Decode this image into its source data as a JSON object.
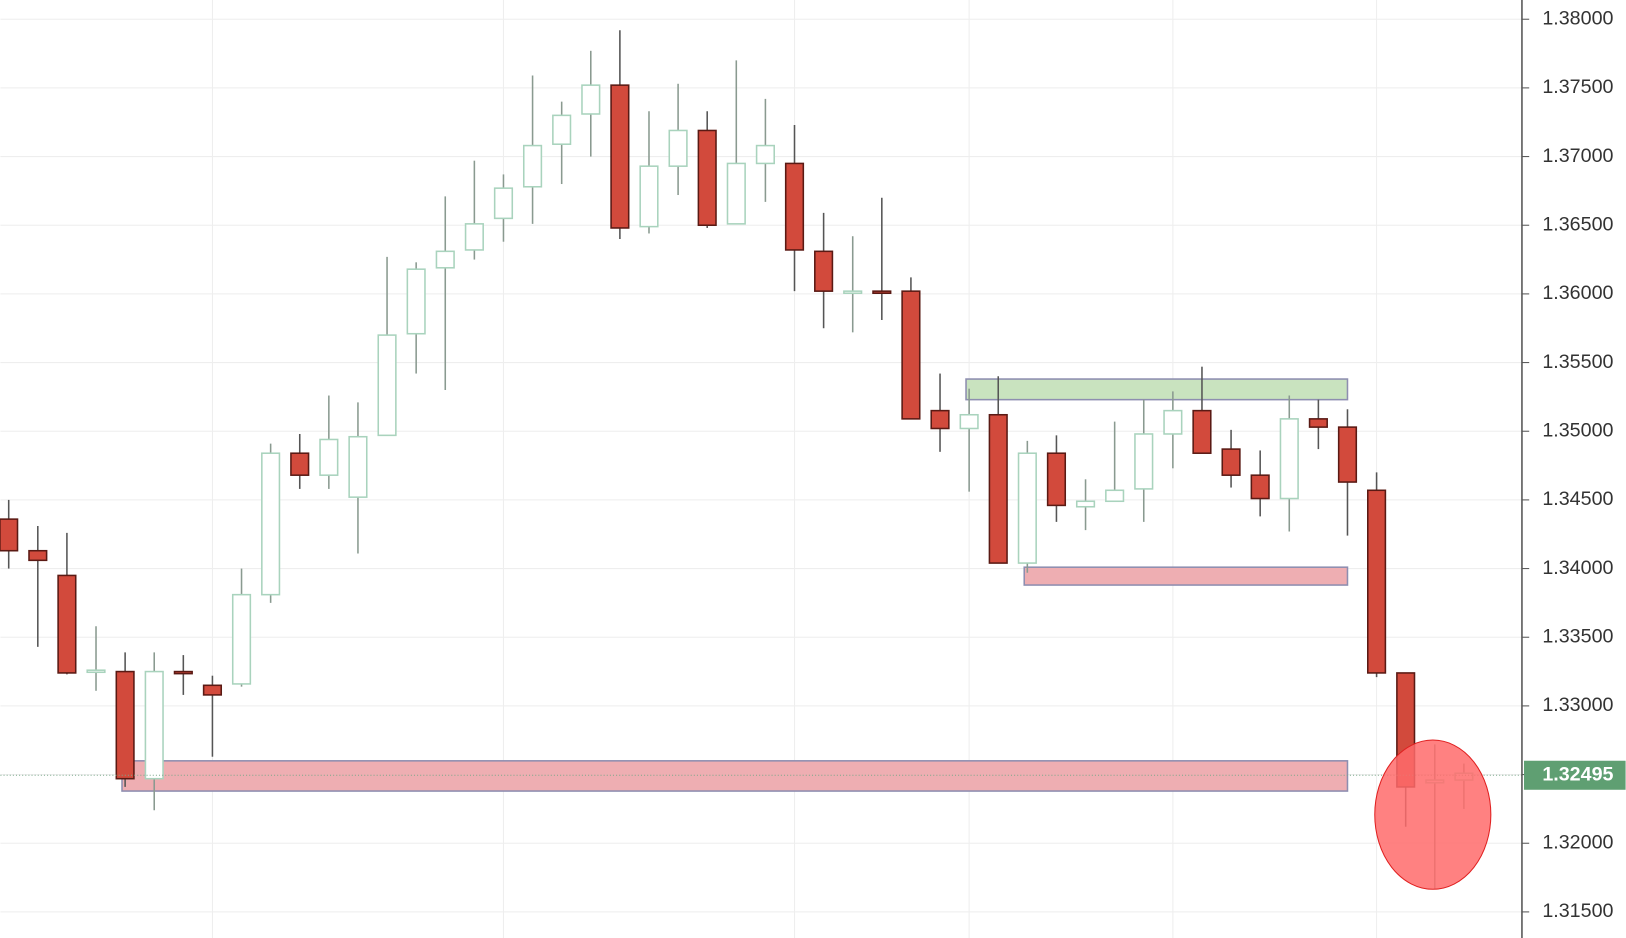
{
  "chart_data": {
    "type": "candlestick",
    "open": [
      1.3436,
      1.3413,
      1.3395,
      1.3325,
      1.3325,
      1.3247,
      1.3325,
      1.3315,
      1.3316,
      1.3381,
      1.3484,
      1.3468,
      1.3452,
      1.3497,
      1.3571,
      1.3619,
      1.3632,
      1.3655,
      1.3678,
      1.3709,
      1.3731,
      1.3752,
      1.3649,
      1.3693,
      1.3719,
      1.3651,
      1.3695,
      1.3695,
      1.3631,
      1.3601,
      1.3602,
      1.3602,
      1.3515,
      1.3502,
      1.3512,
      1.3404,
      1.3484,
      1.3445,
      1.3449,
      1.3458,
      1.3498,
      1.3515,
      1.3487,
      1.3468,
      1.3451,
      1.3509,
      1.3503,
      1.3457,
      1.3324,
      1.3244,
      1.3246
    ],
    "high": [
      1.345,
      1.3431,
      1.3426,
      1.3358,
      1.3339,
      1.3339,
      1.3337,
      1.3322,
      1.34,
      1.3491,
      1.3498,
      1.3526,
      1.3521,
      1.3627,
      1.3623,
      1.3671,
      1.3697,
      1.3687,
      1.3759,
      1.374,
      1.3777,
      1.3792,
      1.3733,
      1.3753,
      1.3733,
      1.377,
      1.3742,
      1.3723,
      1.3659,
      1.3642,
      1.367,
      1.3612,
      1.3542,
      1.3531,
      1.354,
      1.3493,
      1.3497,
      1.3465,
      1.3507,
      1.3523,
      1.3529,
      1.3547,
      1.3501,
      1.3486,
      1.3526,
      1.3523,
      1.3516,
      1.347,
      1.3324,
      1.3272,
      1.3258
    ],
    "low": [
      1.34,
      1.3343,
      1.3323,
      1.3311,
      1.3241,
      1.3224,
      1.3308,
      1.3263,
      1.3314,
      1.3375,
      1.3458,
      1.3458,
      1.3411,
      1.3497,
      1.3542,
      1.353,
      1.3625,
      1.3638,
      1.3651,
      1.368,
      1.37,
      1.364,
      1.3644,
      1.3672,
      1.3648,
      1.3651,
      1.3667,
      1.3602,
      1.3575,
      1.3572,
      1.3581,
      1.3509,
      1.3485,
      1.3456,
      1.3404,
      1.3397,
      1.3434,
      1.3428,
      1.3449,
      1.3434,
      1.3473,
      1.3484,
      1.3459,
      1.3438,
      1.3427,
      1.3487,
      1.3424,
      1.3321,
      1.3212,
      1.3167,
      1.3225
    ],
    "close": [
      1.3413,
      1.3406,
      1.3324,
      1.3326,
      1.3247,
      1.3325,
      1.3324,
      1.3308,
      1.3381,
      1.3484,
      1.3468,
      1.3494,
      1.3496,
      1.357,
      1.3618,
      1.3631,
      1.3651,
      1.3677,
      1.3708,
      1.373,
      1.3752,
      1.3648,
      1.3693,
      1.3719,
      1.365,
      1.3695,
      1.3708,
      1.3632,
      1.3602,
      1.3602,
      1.3601,
      1.3509,
      1.3502,
      1.3512,
      1.3404,
      1.3484,
      1.3446,
      1.3449,
      1.3457,
      1.3498,
      1.3515,
      1.3484,
      1.3468,
      1.3451,
      1.3509,
      1.3503,
      1.3463,
      1.3324,
      1.3241,
      1.3246,
      1.3251
    ],
    "up_color": "#a9d3bd",
    "down_color": "#d24a3c",
    "ylim": [
      1.3131,
      1.3814
    ],
    "yticks": [
      {
        "value": 1.315,
        "label": "1.31500"
      },
      {
        "value": 1.32,
        "label": "1.32000"
      },
      {
        "value": 1.325,
        "label": "1.32500"
      },
      {
        "value": 1.33,
        "label": "1.33000"
      },
      {
        "value": 1.335,
        "label": "1.33500"
      },
      {
        "value": 1.34,
        "label": "1.34000"
      },
      {
        "value": 1.345,
        "label": "1.34500"
      },
      {
        "value": 1.35,
        "label": "1.35000"
      },
      {
        "value": 1.355,
        "label": "1.35500"
      },
      {
        "value": 1.36,
        "label": "1.36000"
      },
      {
        "value": 1.365,
        "label": "1.36500"
      },
      {
        "value": 1.37,
        "label": "1.37000"
      },
      {
        "value": 1.375,
        "label": "1.37500"
      },
      {
        "value": 1.38,
        "label": "1.38000"
      }
    ],
    "grid": true,
    "last_price": {
      "value": 1.32495,
      "label": "1.32495",
      "color": "#5f9f72"
    },
    "zones": [
      {
        "start": 4,
        "end": 46,
        "high": 1.326,
        "low": 1.3238,
        "color": "#eeaeb2"
      },
      {
        "start": 35,
        "end": 46,
        "high": 1.3401,
        "low": 1.3388,
        "color": "#eeaeb2"
      },
      {
        "start": 33,
        "end": 46,
        "high": 1.3538,
        "low": 1.3523,
        "color": "#c9e3bf"
      }
    ]
  }
}
